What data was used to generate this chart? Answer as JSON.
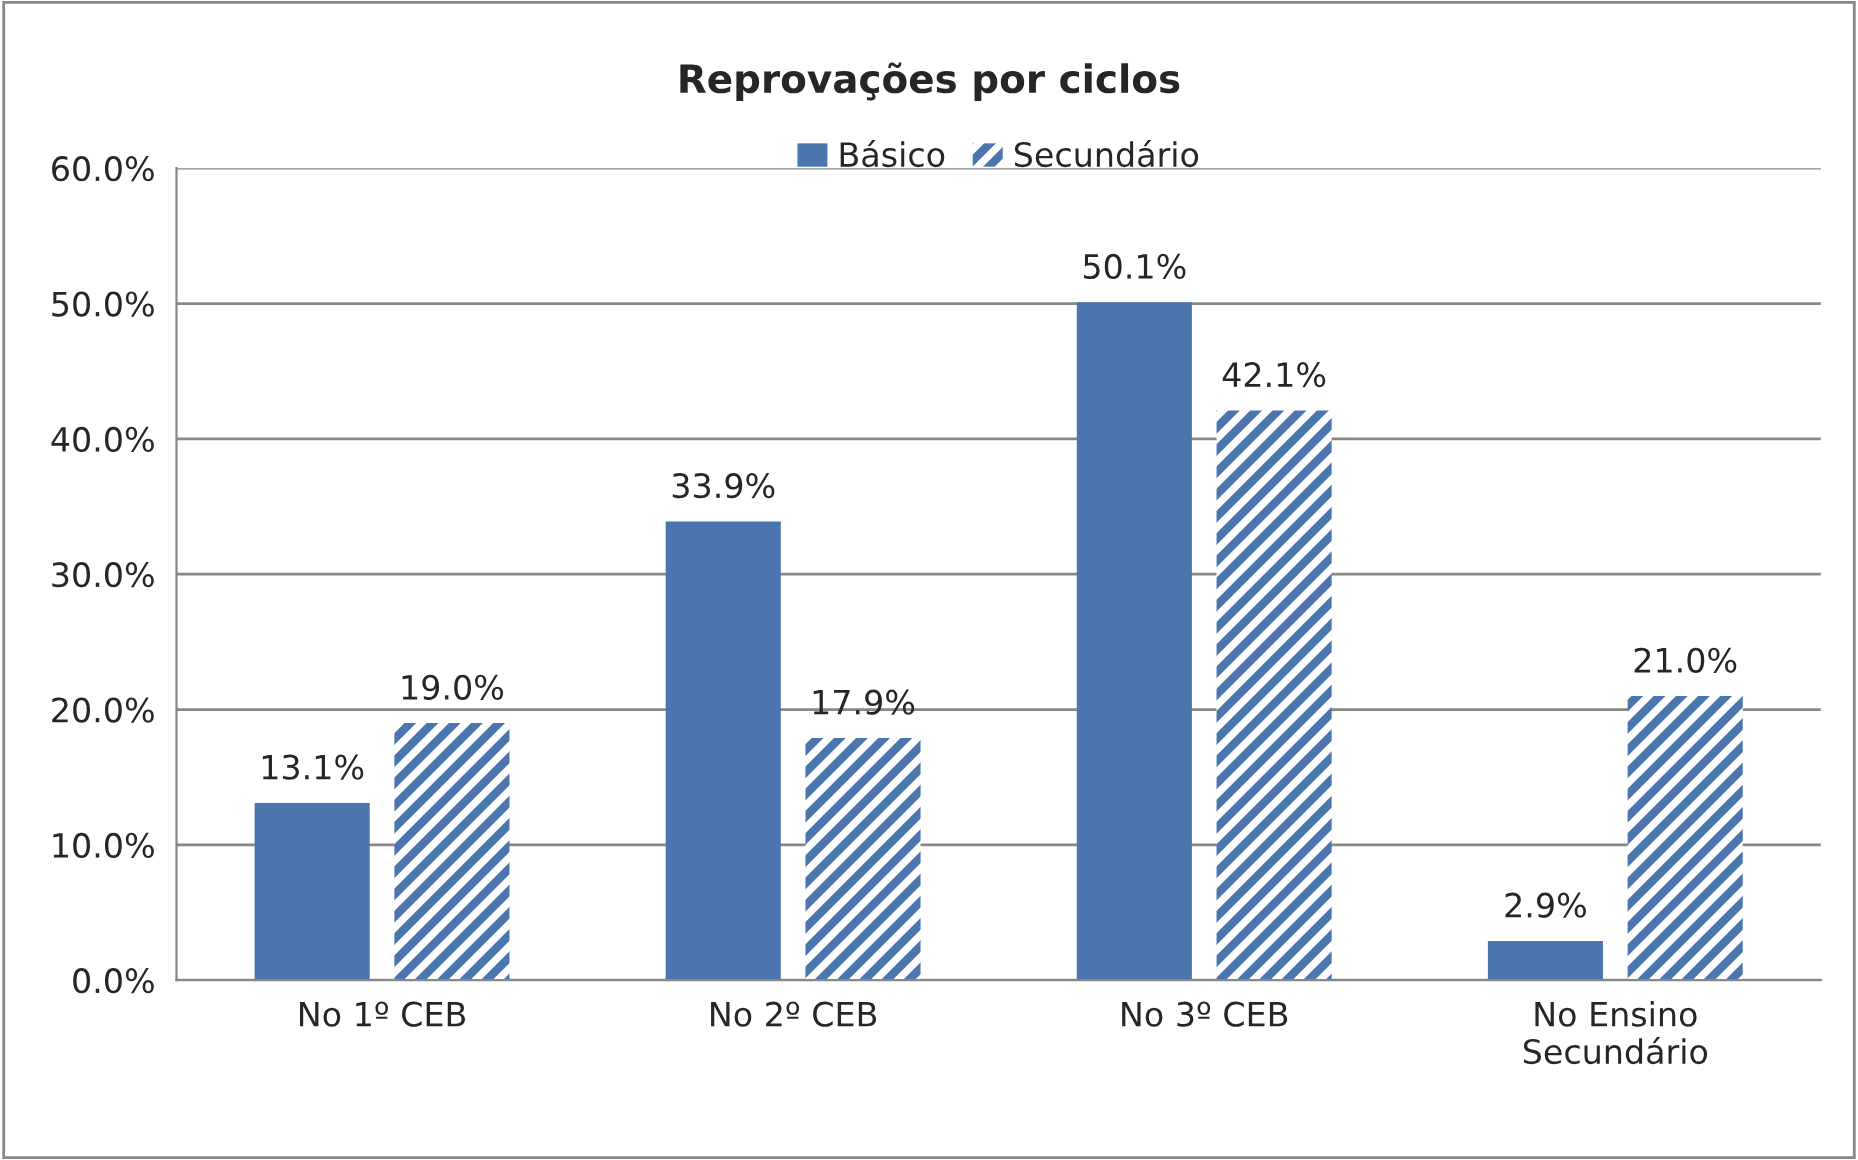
{
  "chart_data": {
    "type": "bar",
    "title": "Reprovações por ciclos",
    "categories": [
      "No 1º CEB",
      "No 2º CEB",
      "No 3º CEB",
      "No Ensino\nSecundário"
    ],
    "series": [
      {
        "name": "Básico",
        "color": "#4a76ad",
        "values": [
          13.1,
          33.9,
          50.1,
          2.9
        ],
        "value_labels": [
          "13.1%",
          "33.9%",
          "50.1%",
          "2.9%"
        ]
      },
      {
        "name": "Secundário",
        "color": "#4a76ad",
        "values": [
          19.0,
          17.9,
          42.1,
          21.0
        ],
        "value_labels": [
          "19.0%",
          "17.9%",
          "42.1%",
          "21.0%"
        ]
      }
    ],
    "ylim": [
      0,
      60
    ],
    "yticks": [
      {
        "value": 0,
        "label": "0.0%"
      },
      {
        "value": 10,
        "label": "10.0%"
      },
      {
        "value": 20,
        "label": "20.0%"
      },
      {
        "value": 30,
        "label": "30.0%"
      },
      {
        "value": 40,
        "label": "40.0%"
      },
      {
        "value": 50,
        "label": "50.0%"
      },
      {
        "value": 60,
        "label": "60.0%"
      }
    ],
    "grid": "y",
    "legend": "top"
  }
}
